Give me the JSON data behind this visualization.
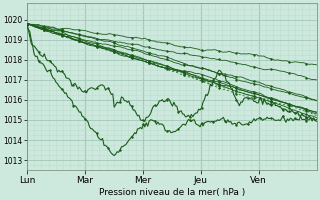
{
  "bg_color": "#cde8dc",
  "grid_major_color": "#a8ccbe",
  "grid_minor_color": "#bdddd0",
  "line_color": "#1a5c1a",
  "xlabel": "Pression niveau de la mer( hPa )",
  "ylim": [
    1012.5,
    1020.8
  ],
  "yticks": [
    1013,
    1014,
    1015,
    1016,
    1017,
    1018,
    1019,
    1020
  ],
  "xtick_labels": [
    "Lun",
    "Mar",
    "Mer",
    "Jeu",
    "Ven"
  ],
  "xtick_positions": [
    0,
    24,
    48,
    72,
    96
  ],
  "total_hours": 120,
  "figsize": [
    3.2,
    2.0
  ],
  "dpi": 100
}
